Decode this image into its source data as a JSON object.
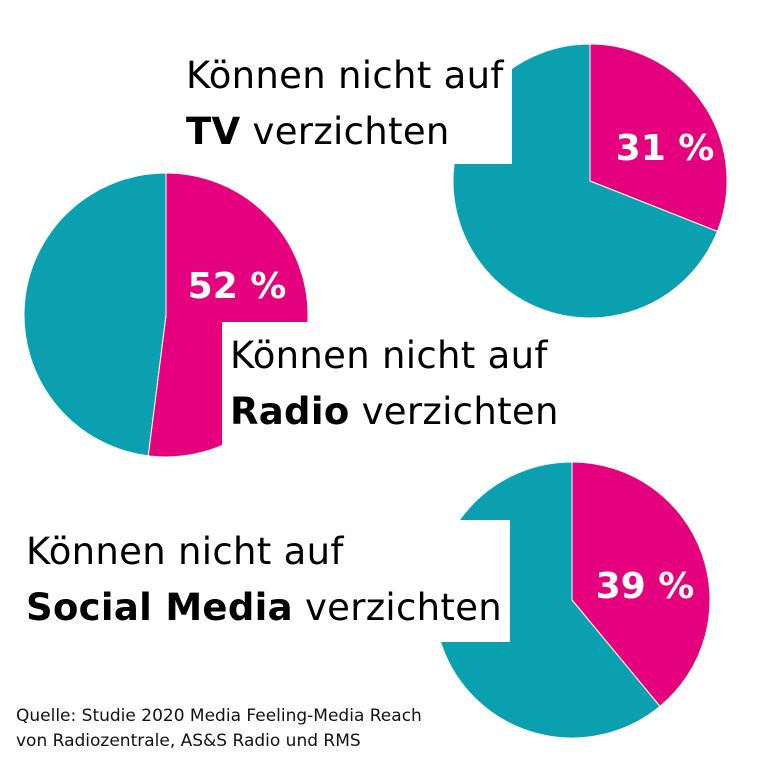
{
  "chart_data": [
    {
      "type": "pie",
      "line1": "Können nicht auf",
      "medium": "TV",
      "line2_suffix": "verzichten",
      "value": 31,
      "label": "31 %",
      "values": [
        31,
        69
      ]
    },
    {
      "type": "pie",
      "line1": "Können nicht auf",
      "medium": "Radio",
      "line2_suffix": "verzichten",
      "value": 52,
      "label": "52 %",
      "values": [
        52,
        48
      ]
    },
    {
      "type": "pie",
      "line1": "Können nicht auf",
      "medium": "Social Media",
      "line2_suffix": "verzichten",
      "value": 39,
      "label": "39 %",
      "values": [
        39,
        61
      ]
    }
  ],
  "colors": {
    "highlight": "#E5007E",
    "rest": "#0BA0B0"
  },
  "source": {
    "line1": "Quelle: Studie 2020 Media Feeling-Media Reach",
    "line2": "von Radiozentrale, AS&S Radio und RMS"
  }
}
